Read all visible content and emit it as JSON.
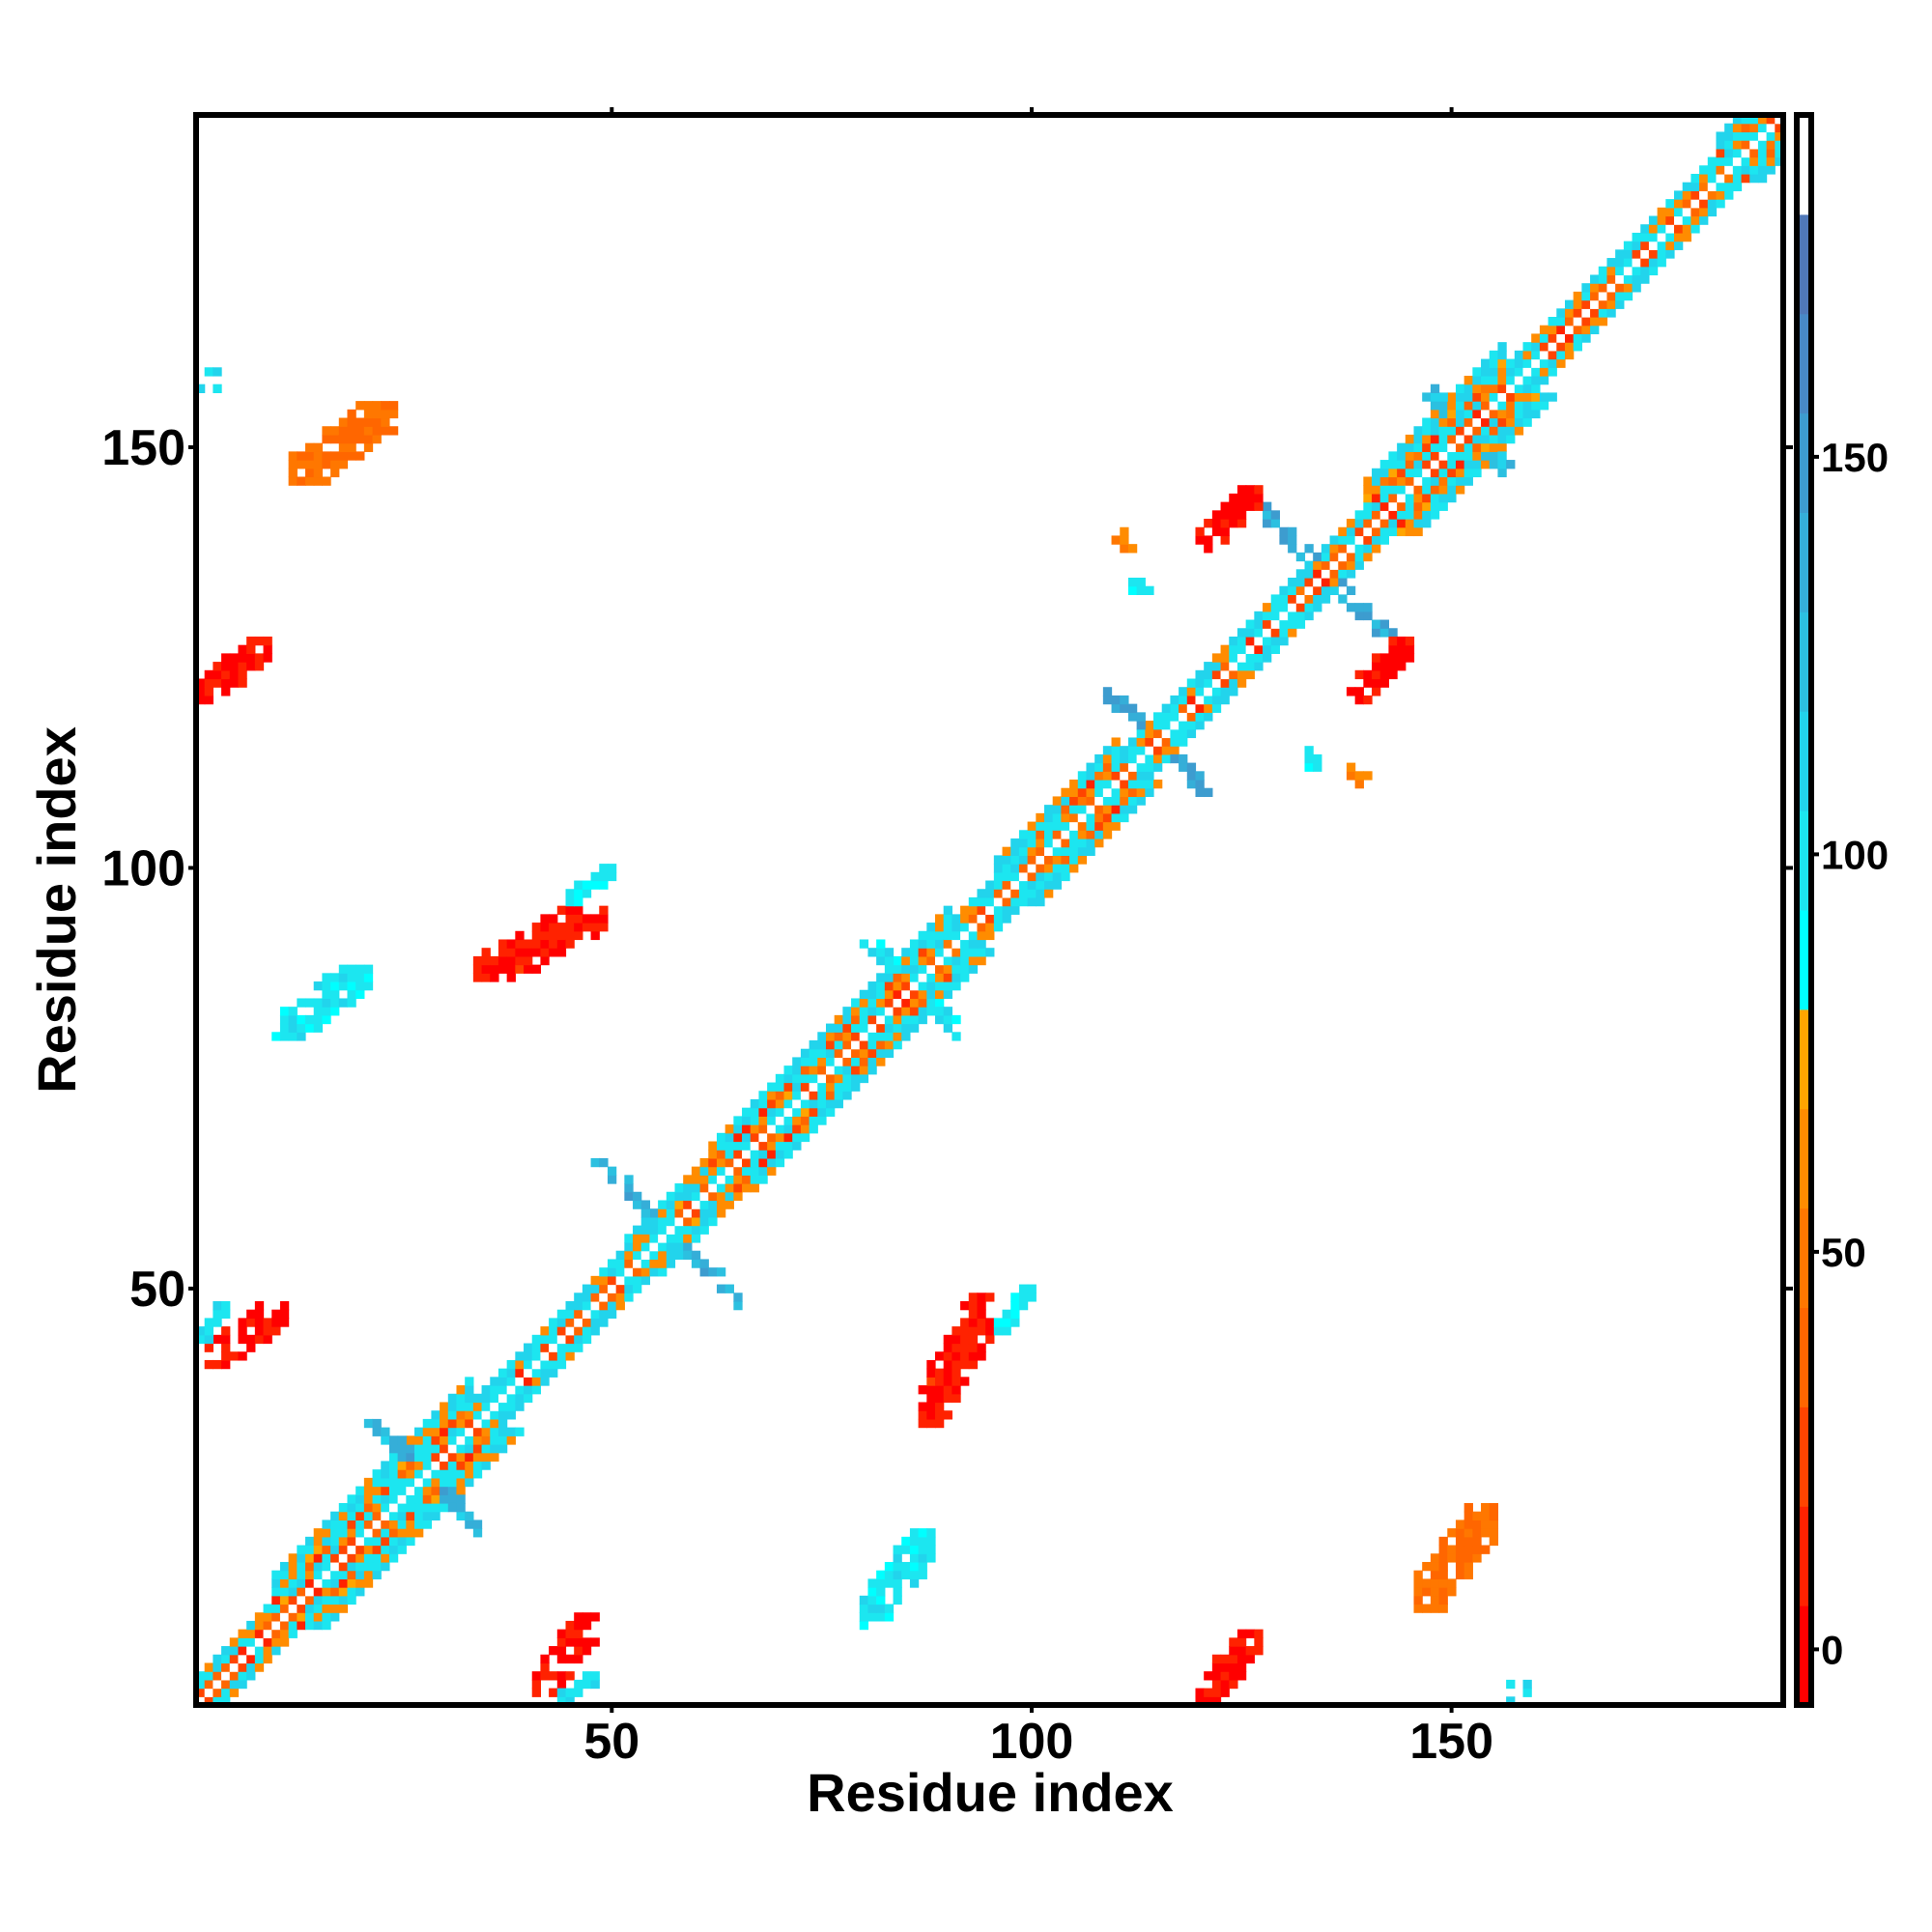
{
  "chart_data": {
    "type": "heatmap",
    "title": "",
    "xlabel": "Residue index",
    "ylabel": "Residue index",
    "n_residues": 189,
    "xlim": [
      0.5,
      189.5
    ],
    "ylim": [
      0.5,
      189.5
    ],
    "x_ticks": [
      50,
      100,
      150
    ],
    "y_ticks": [
      50,
      100,
      150
    ],
    "colorbar": {
      "range": [
        -7,
        193
      ],
      "ticks": [
        0,
        50,
        100,
        150
      ],
      "levels": [
        "#ff0000",
        "#ff2200",
        "#ff4400",
        "#ff6600",
        "#ff7700",
        "#ff8c00",
        "#ffa500",
        "#00ffff",
        "#1ce6f0",
        "#22d4ec",
        "#2cc0e0",
        "#35aed8",
        "#3d9ccf",
        "#4889c6",
        "#5078b8",
        "#ffffff"
      ]
    },
    "symmetric": true,
    "diagonal_bands": [
      {
        "start": 1,
        "end": 10,
        "halfwidth": 3
      },
      {
        "start": 10,
        "end": 33,
        "halfwidth": 6
      },
      {
        "start": 33,
        "end": 52,
        "halfwidth": 3
      },
      {
        "start": 52,
        "end": 62,
        "halfwidth": 4
      },
      {
        "start": 62,
        "end": 90,
        "halfwidth": 5
      },
      {
        "start": 90,
        "end": 96,
        "halfwidth": 3
      },
      {
        "start": 96,
        "end": 110,
        "halfwidth": 5
      },
      {
        "start": 110,
        "end": 140,
        "halfwidth": 3
      },
      {
        "start": 140,
        "end": 156,
        "halfwidth": 6
      },
      {
        "start": 156,
        "end": 182,
        "halfwidth": 3
      },
      {
        "start": 182,
        "end": 189,
        "halfwidth": 5
      }
    ],
    "crossings": [
      {
        "residue": 28,
        "arm": 6,
        "value": 130
      },
      {
        "residue": 57,
        "arm": 8,
        "value": 135
      },
      {
        "residue": 86,
        "arm": 5,
        "value": 105
      },
      {
        "residue": 115,
        "arm": 6,
        "value": 145
      },
      {
        "residue": 135,
        "arm": 8,
        "value": 140
      },
      {
        "residue": 152,
        "arm": 5,
        "value": 120
      }
    ],
    "contact_patches": [
      {
        "x": [
          2,
          11
        ],
        "y": [
          41,
          48
        ],
        "value": 5
      },
      {
        "x": [
          34,
          49
        ],
        "y": [
          87,
          95
        ],
        "value": 10
      },
      {
        "x": [
          1,
          9
        ],
        "y": [
          120,
          127
        ],
        "value": 5
      },
      {
        "x": [
          120,
          127
        ],
        "y": [
          138,
          145
        ],
        "value": 5
      },
      {
        "x": [
          12,
          24
        ],
        "y": [
          146,
          155
        ],
        "value": 45
      },
      {
        "x": [
          10,
          21
        ],
        "y": [
          80,
          88
        ],
        "value": 100
      },
      {
        "x": [
          45,
          50
        ],
        "y": [
          96,
          100
        ],
        "value": 95
      },
      {
        "x": [
          44,
          48
        ],
        "y": [
          1,
          4
        ],
        "value": 105
      },
      {
        "x": [
          1,
          3
        ],
        "y": [
          157,
          159
        ],
        "value": 110
      },
      {
        "x": [
          112,
          114
        ],
        "y": [
          133,
          135
        ],
        "value": 105
      },
      {
        "x": [
          138,
          140
        ],
        "y": [
          110,
          112
        ],
        "value": 60
      }
    ]
  }
}
